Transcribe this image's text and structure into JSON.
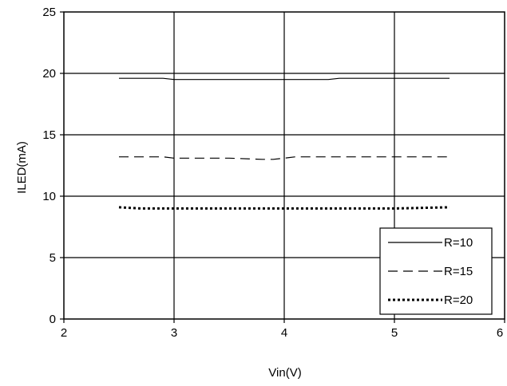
{
  "chart_data": {
    "type": "line",
    "title": "",
    "xlabel": "Vin(V)",
    "ylabel": "ILED(mA)",
    "xlim": [
      2,
      6
    ],
    "ylim": [
      0,
      25
    ],
    "xticks": [
      "2",
      "3",
      "4",
      "5",
      "6"
    ],
    "yticks": [
      "0",
      "5",
      "10",
      "15",
      "20",
      "25"
    ],
    "grid": true,
    "legend_position": "bottom-right",
    "series": [
      {
        "name": "R=10",
        "style": "solid",
        "x": [
          2.5,
          2.9,
          3.0,
          4.0,
          4.4,
          4.5,
          5.0,
          5.5
        ],
        "y": [
          19.6,
          19.6,
          19.5,
          19.5,
          19.5,
          19.6,
          19.6,
          19.6
        ]
      },
      {
        "name": "R=15",
        "style": "dashed",
        "x": [
          2.5,
          2.9,
          3.0,
          3.5,
          3.8,
          3.9,
          4.0,
          4.1,
          4.5,
          5.0,
          5.5
        ],
        "y": [
          13.2,
          13.2,
          13.1,
          13.1,
          13.0,
          13.0,
          13.1,
          13.2,
          13.2,
          13.2,
          13.2
        ]
      },
      {
        "name": "R=20",
        "style": "dotted",
        "x": [
          2.5,
          2.7,
          3.0,
          3.5,
          4.0,
          4.5,
          5.0,
          5.5
        ],
        "y": [
          9.1,
          9.0,
          9.0,
          9.0,
          9.0,
          9.0,
          9.0,
          9.1
        ]
      }
    ]
  }
}
